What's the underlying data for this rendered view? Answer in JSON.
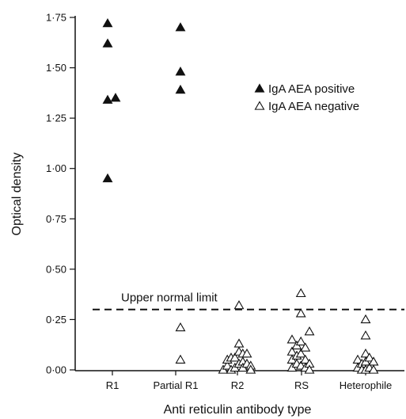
{
  "chart_data": {
    "type": "scatter",
    "title": "",
    "xlabel": "Anti reticulin antibody type",
    "ylabel": "Optical density",
    "ylim": [
      0,
      1.8
    ],
    "categories": [
      "R1",
      "Partial R1",
      "R2",
      "RS",
      "Heterophile"
    ],
    "y_ticks": [
      "0·00",
      "0·25",
      "0·50",
      "0·75",
      "1·00",
      "1·25",
      "1·50",
      "1·75"
    ],
    "y_tick_values": [
      0,
      0.25,
      0.5,
      0.75,
      1.0,
      1.25,
      1.5,
      1.75
    ],
    "grid": false,
    "legend_position": "top-right",
    "reference_line": {
      "y": 0.3,
      "label": "Upper normal limit"
    },
    "series": [
      {
        "name": "IgA AEA positive",
        "marker": "filled-triangle",
        "points": [
          {
            "category": 0,
            "offset": -0.15,
            "y": 1.72
          },
          {
            "category": 0,
            "offset": -0.15,
            "y": 1.62
          },
          {
            "category": 0,
            "offset": -0.15,
            "y": 1.34
          },
          {
            "category": 0,
            "offset": 0.1,
            "y": 1.35
          },
          {
            "category": 0,
            "offset": -0.15,
            "y": 0.95
          },
          {
            "category": 1,
            "offset": 0.15,
            "y": 1.7
          },
          {
            "category": 1,
            "offset": 0.15,
            "y": 1.48
          },
          {
            "category": 1,
            "offset": 0.15,
            "y": 1.39
          }
        ]
      },
      {
        "name": "IgA AEA negative",
        "marker": "open-triangle",
        "points": [
          {
            "category": 1,
            "offset": 0.15,
            "y": 0.21
          },
          {
            "category": 1,
            "offset": 0.15,
            "y": 0.05
          },
          {
            "category": 2,
            "offset": -0.45,
            "y": 0.0
          },
          {
            "category": 2,
            "offset": -0.32,
            "y": 0.02
          },
          {
            "category": 2,
            "offset": -0.32,
            "y": 0.05
          },
          {
            "category": 2,
            "offset": -0.2,
            "y": 0.0
          },
          {
            "category": 2,
            "offset": -0.2,
            "y": 0.06
          },
          {
            "category": 2,
            "offset": -0.08,
            "y": 0.01
          },
          {
            "category": 2,
            "offset": -0.08,
            "y": 0.06
          },
          {
            "category": 2,
            "offset": 0.05,
            "y": 0.13
          },
          {
            "category": 2,
            "offset": 0.05,
            "y": 0.09
          },
          {
            "category": 2,
            "offset": 0.05,
            "y": 0.03
          },
          {
            "category": 2,
            "offset": 0.05,
            "y": 0.32
          },
          {
            "category": 2,
            "offset": 0.17,
            "y": 0.08
          },
          {
            "category": 2,
            "offset": 0.17,
            "y": 0.04
          },
          {
            "category": 2,
            "offset": 0.17,
            "y": 0.01
          },
          {
            "category": 2,
            "offset": 0.3,
            "y": 0.08
          },
          {
            "category": 2,
            "offset": 0.3,
            "y": 0.03
          },
          {
            "category": 2,
            "offset": 0.42,
            "y": 0.02
          },
          {
            "category": 2,
            "offset": 0.42,
            "y": 0.0
          },
          {
            "category": 3,
            "offset": -0.3,
            "y": 0.15
          },
          {
            "category": 3,
            "offset": -0.3,
            "y": 0.09
          },
          {
            "category": 3,
            "offset": -0.3,
            "y": 0.05
          },
          {
            "category": 3,
            "offset": -0.3,
            "y": 0.01
          },
          {
            "category": 3,
            "offset": -0.15,
            "y": 0.12
          },
          {
            "category": 3,
            "offset": -0.15,
            "y": 0.07
          },
          {
            "category": 3,
            "offset": -0.15,
            "y": 0.03
          },
          {
            "category": 3,
            "offset": -0.02,
            "y": 0.38
          },
          {
            "category": 3,
            "offset": -0.02,
            "y": 0.28
          },
          {
            "category": 3,
            "offset": -0.02,
            "y": 0.14
          },
          {
            "category": 3,
            "offset": -0.02,
            "y": 0.08
          },
          {
            "category": 3,
            "offset": -0.02,
            "y": 0.02
          },
          {
            "category": 3,
            "offset": 0.12,
            "y": 0.11
          },
          {
            "category": 3,
            "offset": 0.12,
            "y": 0.05
          },
          {
            "category": 3,
            "offset": 0.12,
            "y": 0.01
          },
          {
            "category": 3,
            "offset": 0.25,
            "y": 0.19
          },
          {
            "category": 3,
            "offset": 0.25,
            "y": 0.03
          },
          {
            "category": 3,
            "offset": 0.25,
            "y": 0.0
          },
          {
            "category": 4,
            "offset": -0.25,
            "y": 0.05
          },
          {
            "category": 4,
            "offset": -0.25,
            "y": 0.01
          },
          {
            "category": 4,
            "offset": -0.12,
            "y": 0.03
          },
          {
            "category": 4,
            "offset": -0.12,
            "y": 0.0
          },
          {
            "category": 4,
            "offset": 0.0,
            "y": 0.25
          },
          {
            "category": 4,
            "offset": 0.0,
            "y": 0.17
          },
          {
            "category": 4,
            "offset": 0.0,
            "y": 0.08
          },
          {
            "category": 4,
            "offset": 0.0,
            "y": 0.04
          },
          {
            "category": 4,
            "offset": 0.0,
            "y": 0.0
          },
          {
            "category": 4,
            "offset": 0.12,
            "y": 0.06
          },
          {
            "category": 4,
            "offset": 0.12,
            "y": 0.01
          },
          {
            "category": 4,
            "offset": 0.25,
            "y": 0.04
          },
          {
            "category": 4,
            "offset": 0.25,
            "y": 0.0
          }
        ]
      }
    ]
  }
}
